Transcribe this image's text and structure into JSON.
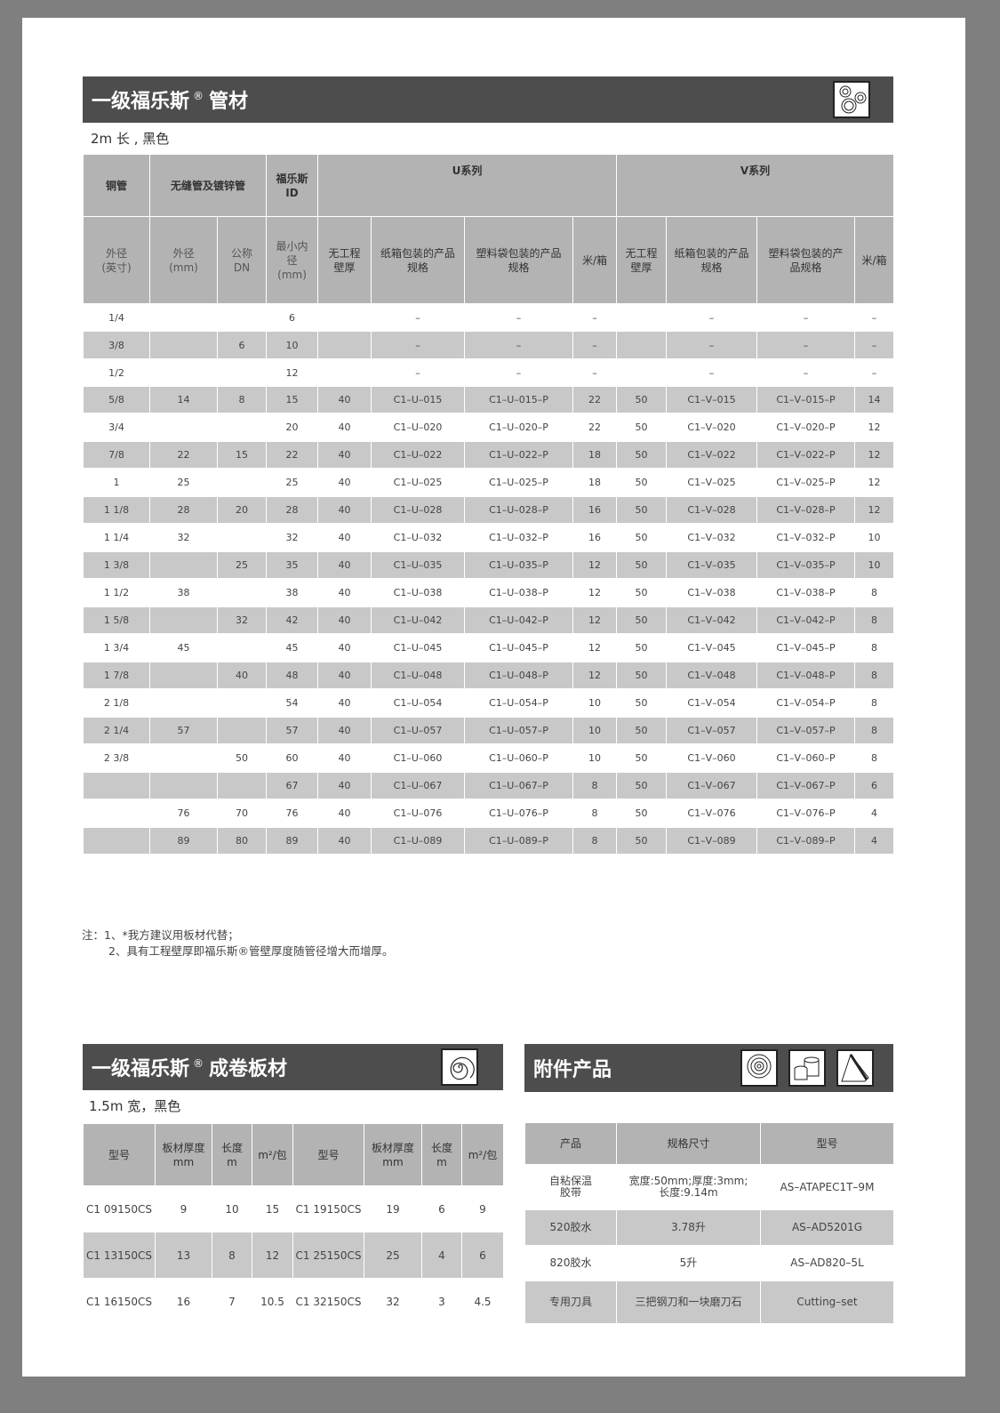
{
  "pipe": {
    "title": "一级福乐斯",
    "reg": "®",
    "title2": "管材",
    "subtitle": "2m 长 , 黑色",
    "head1": [
      "铜管",
      "无缝管及镀锌管",
      "福乐斯\nID",
      "U系列",
      "V系列"
    ],
    "head2": [
      "外径\n(英寸)",
      "外径\n(mm)",
      "公称\nDN",
      "最小内\n径\n(mm)",
      "无工程\n壁厚",
      "纸箱包装的产品\n规格",
      "塑料袋包装的产品\n规格",
      "米/箱",
      "无工程\n壁厚",
      "纸箱包装的产品\n规格",
      "塑料袋包装的产\n品规格",
      "米/箱"
    ],
    "rows": [
      [
        "1/4",
        "",
        "",
        "6",
        "",
        "–",
        "–",
        "–",
        "",
        "–",
        "–",
        "–"
      ],
      [
        "3/8",
        "",
        "6",
        "10",
        "",
        "–",
        "–",
        "–",
        "",
        "–",
        "–",
        "–"
      ],
      [
        "1/2",
        "",
        "",
        "12",
        "",
        "–",
        "–",
        "–",
        "",
        "–",
        "–",
        "–"
      ],
      [
        "5/8",
        "14",
        "8",
        "15",
        "40",
        "C1–U–015",
        "C1–U–015–P",
        "22",
        "50",
        "C1–V–015",
        "C1–V–015–P",
        "14"
      ],
      [
        "3/4",
        "",
        "",
        "20",
        "40",
        "C1–U–020",
        "C1–U–020–P",
        "22",
        "50",
        "C1–V–020",
        "C1–V–020–P",
        "12"
      ],
      [
        "7/8",
        "22",
        "15",
        "22",
        "40",
        "C1–U–022",
        "C1–U–022–P",
        "18",
        "50",
        "C1–V–022",
        "C1–V–022–P",
        "12"
      ],
      [
        "1",
        "25",
        "",
        "25",
        "40",
        "C1–U–025",
        "C1–U–025–P",
        "18",
        "50",
        "C1–V–025",
        "C1–V–025–P",
        "12"
      ],
      [
        "1 1/8",
        "28",
        "20",
        "28",
        "40",
        "C1–U–028",
        "C1–U–028–P",
        "16",
        "50",
        "C1–V–028",
        "C1–V–028–P",
        "12"
      ],
      [
        "1 1/4",
        "32",
        "",
        "32",
        "40",
        "C1–U–032",
        "C1–U–032–P",
        "16",
        "50",
        "C1–V–032",
        "C1–V–032–P",
        "10"
      ],
      [
        "1 3/8",
        "",
        "25",
        "35",
        "40",
        "C1–U–035",
        "C1–U–035–P",
        "12",
        "50",
        "C1–V–035",
        "C1–V–035–P",
        "10"
      ],
      [
        "1 1/2",
        "38",
        "",
        "38",
        "40",
        "C1–U–038",
        "C1–U–038–P",
        "12",
        "50",
        "C1–V–038",
        "C1–V–038–P",
        "8"
      ],
      [
        "1 5/8",
        "",
        "32",
        "42",
        "40",
        "C1–U–042",
        "C1–U–042–P",
        "12",
        "50",
        "C1–V–042",
        "C1–V–042–P",
        "8"
      ],
      [
        "1 3/4",
        "45",
        "",
        "45",
        "40",
        "C1–U–045",
        "C1–U–045–P",
        "12",
        "50",
        "C1–V–045",
        "C1–V–045–P",
        "8"
      ],
      [
        "1 7/8",
        "",
        "40",
        "48",
        "40",
        "C1–U–048",
        "C1–U–048–P",
        "12",
        "50",
        "C1–V–048",
        "C1–V–048–P",
        "8"
      ],
      [
        "2 1/8",
        "",
        "",
        "54",
        "40",
        "C1–U–054",
        "C1–U–054–P",
        "10",
        "50",
        "C1–V–054",
        "C1–V–054–P",
        "8"
      ],
      [
        "2 1/4",
        "57",
        "",
        "57",
        "40",
        "C1–U–057",
        "C1–U–057–P",
        "10",
        "50",
        "C1–V–057",
        "C1–V–057–P",
        "8"
      ],
      [
        "2 3/8",
        "",
        "50",
        "60",
        "40",
        "C1–U–060",
        "C1–U–060–P",
        "10",
        "50",
        "C1–V–060",
        "C1–V–060–P",
        "8"
      ],
      [
        "",
        "",
        "",
        "67",
        "40",
        "C1–U–067",
        "C1–U–067–P",
        "8",
        "50",
        "C1–V–067",
        "C1–V–067–P",
        "6"
      ],
      [
        "",
        "76",
        "70",
        "76",
        "40",
        "C1–U–076",
        "C1–U–076–P",
        "8",
        "50",
        "C1–V–076",
        "C1–V–076–P",
        "4"
      ],
      [
        "",
        "89",
        "80",
        "89",
        "40",
        "C1–U–089",
        "C1–U–089–P",
        "8",
        "50",
        "C1–V–089",
        "C1–V–089–P",
        "4"
      ]
    ]
  },
  "notes": [
    "注：1、*我方建议用板材代替；",
    "2、具有工程壁厚即福乐斯®管壁厚度随管径增大而增厚。"
  ],
  "sheet": {
    "title": "一级福乐斯",
    "reg": "®",
    "title2": "成卷板材",
    "subtitle": "1.5m 宽，黑色",
    "head": [
      "型号",
      "板材厚度\nmm",
      "长度\nm",
      "m²/包",
      "型号",
      "板材厚度\nmm",
      "长度\nm",
      "m²/包"
    ],
    "rows": [
      [
        "C1 09150CS",
        "9",
        "10",
        "15",
        "C1 19150CS",
        "19",
        "6",
        "9"
      ],
      [
        "C1 13150CS",
        "13",
        "8",
        "12",
        "C1 25150CS",
        "25",
        "4",
        "6"
      ],
      [
        "C1 16150CS",
        "16",
        "7",
        "10.5",
        "C1 32150CS",
        "32",
        "3",
        "4.5"
      ]
    ]
  },
  "acc": {
    "title": "附件产品",
    "head": [
      "产品",
      "规格尺寸",
      "型号"
    ],
    "rows": [
      [
        "自粘保温\n胶带",
        "宽度:50mm;厚度:3mm;\n长度:9.14m",
        "AS–ATAPEC1T–9M"
      ],
      [
        "520胶水",
        "3.78升",
        "AS–AD5201G"
      ],
      [
        "820胶水",
        "5升",
        "AS–AD820–5L"
      ],
      [
        "专用刀具",
        "三把钢刀和一块磨刀石",
        "Cutting–set"
      ]
    ]
  }
}
